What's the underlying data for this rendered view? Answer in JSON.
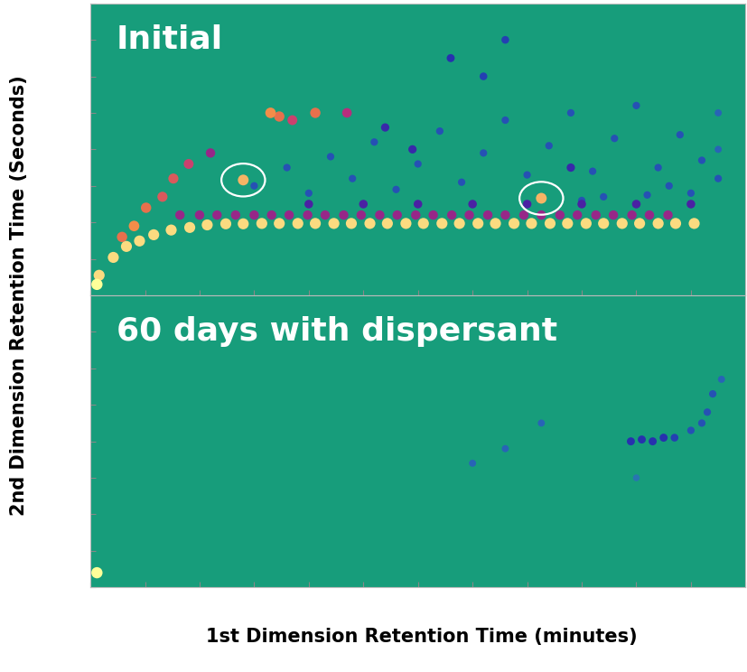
{
  "x_label": "1st Dimension Retention Time (minutes)",
  "y_label": "2nd Dimension Retention Time (Seconds)",
  "chart_data": [
    {
      "type": "scatter",
      "title": "Initial",
      "xlim": [
        0,
        60
      ],
      "ylim": [
        0,
        8
      ],
      "xticks": [
        0,
        5,
        10,
        15,
        20,
        25,
        30,
        35,
        40,
        45,
        50,
        55,
        60
      ],
      "yticks": [
        0,
        1,
        2,
        3,
        4,
        5,
        6,
        7,
        8
      ],
      "tick_labels": false,
      "color_range": [
        0,
        100
      ],
      "circled": [
        [
          14.0,
          3.16
        ],
        [
          41.3,
          2.66
        ]
      ],
      "x": [
        0.6,
        0.8,
        2.1,
        3.3,
        4.5,
        5.8,
        7.4,
        9.1,
        10.7,
        12.4,
        14.0,
        15.7,
        17.3,
        19.0,
        20.6,
        22.3,
        23.9,
        25.6,
        27.2,
        28.9,
        30.5,
        32.2,
        33.8,
        35.5,
        37.1,
        38.8,
        40.4,
        42.1,
        43.7,
        45.4,
        47.0,
        48.7,
        50.3,
        52.0,
        53.6,
        55.3,
        8.2,
        10.0,
        11.6,
        13.3,
        15.0,
        16.6,
        18.2,
        19.9,
        21.5,
        23.2,
        24.8,
        26.5,
        28.1,
        29.8,
        31.4,
        33.1,
        34.7,
        36.4,
        38.0,
        39.7,
        41.3,
        43.0,
        44.6,
        46.3,
        47.9,
        49.6,
        51.2,
        52.9,
        2.9,
        4.0,
        5.1,
        6.6,
        7.6,
        9.0,
        11.0,
        14.0,
        16.5,
        17.3,
        18.5,
        20.6,
        23.5,
        27.0,
        29.5,
        33.0,
        36.0,
        41.3,
        44.0,
        38.0,
        15,
        18,
        20,
        22,
        24,
        26,
        28,
        30,
        32,
        34,
        36,
        38,
        40,
        42,
        44,
        46,
        48,
        50,
        52,
        54,
        56,
        47,
        51,
        55,
        45,
        53,
        20,
        25,
        30,
        35,
        40,
        45,
        50,
        55,
        57.5,
        57.5,
        57.5
      ],
      "values": [
        0.3,
        0.55,
        1.04,
        1.34,
        1.49,
        1.66,
        1.79,
        1.86,
        1.93,
        1.96,
        1.96,
        1.97,
        1.97,
        1.97,
        1.97,
        1.97,
        1.97,
        1.97,
        1.97,
        1.97,
        1.97,
        1.97,
        1.97,
        1.97,
        1.97,
        1.97,
        1.97,
        1.97,
        1.97,
        1.97,
        1.97,
        1.97,
        1.97,
        1.97,
        1.97,
        1.97,
        2.2,
        2.2,
        2.2,
        2.2,
        2.2,
        2.2,
        2.2,
        2.2,
        2.2,
        2.2,
        2.2,
        2.2,
        2.2,
        2.2,
        2.2,
        2.2,
        2.2,
        2.2,
        2.2,
        2.2,
        2.2,
        2.2,
        2.2,
        2.2,
        2.2,
        2.2,
        2.2,
        2.2,
        1.6,
        1.9,
        2.4,
        2.7,
        3.2,
        3.6,
        3.9,
        3.16,
        5.0,
        4.9,
        4.8,
        5.0,
        5.0,
        4.6,
        4.0,
        6.5,
        6.0,
        2.66,
        3.5,
        7.0,
        3.0,
        3.5,
        2.8,
        3.8,
        3.2,
        4.2,
        2.9,
        3.6,
        4.5,
        3.1,
        3.9,
        4.8,
        3.3,
        4.1,
        5.0,
        3.4,
        4.3,
        5.2,
        3.5,
        4.4,
        3.7,
        2.7,
        2.75,
        2.8,
        2.6,
        3.0,
        2.5,
        2.5,
        2.5,
        2.5,
        2.5,
        2.5,
        2.5,
        2.5,
        4.0,
        5.0,
        3.2
      ],
      "intensity": [
        100,
        95,
        95,
        95,
        95,
        95,
        95,
        95,
        95,
        95,
        95,
        95,
        95,
        95,
        95,
        95,
        95,
        95,
        95,
        95,
        95,
        95,
        95,
        95,
        95,
        95,
        95,
        95,
        95,
        95,
        95,
        95,
        95,
        95,
        95,
        95,
        60,
        60,
        60,
        60,
        60,
        60,
        60,
        60,
        60,
        60,
        60,
        60,
        60,
        60,
        60,
        60,
        60,
        60,
        60,
        60,
        60,
        60,
        60,
        60,
        60,
        60,
        60,
        60,
        80,
        85,
        80,
        75,
        75,
        70,
        60,
        90,
        85,
        80,
        70,
        80,
        65,
        40,
        40,
        35,
        30,
        90,
        40,
        30,
        25,
        25,
        25,
        25,
        25,
        25,
        25,
        25,
        25,
        25,
        25,
        25,
        25,
        25,
        25,
        25,
        25,
        25,
        25,
        25,
        25,
        25,
        25,
        25,
        25,
        25,
        45,
        45,
        45,
        45,
        45,
        45,
        45,
        45,
        20,
        20,
        25
      ]
    },
    {
      "type": "scatter",
      "title": "60 days with dispersant",
      "xlim": [
        0,
        60
      ],
      "ylim": [
        0,
        8
      ],
      "xticks": [
        0,
        5,
        10,
        15,
        20,
        25,
        30,
        35,
        40,
        45,
        50,
        55,
        60
      ],
      "yticks": [
        0,
        1,
        2,
        3,
        4,
        5,
        6,
        7,
        8
      ],
      "tick_labels": false,
      "color_range": [
        0,
        100
      ],
      "x": [
        0.6,
        49.5,
        50.5,
        51.5,
        52.5,
        53.5,
        55.0,
        56.0,
        57.0,
        57.8,
        41.3,
        35.0,
        38.0,
        50.0,
        56.5
      ],
      "values": [
        0.4,
        4.0,
        4.05,
        4.0,
        4.1,
        4.1,
        4.3,
        4.5,
        5.3,
        5.7,
        4.5,
        3.4,
        3.8,
        3.0,
        4.8
      ],
      "intensity": [
        100,
        35,
        35,
        35,
        35,
        30,
        25,
        25,
        25,
        20,
        20,
        20,
        20,
        15,
        25
      ]
    }
  ]
}
